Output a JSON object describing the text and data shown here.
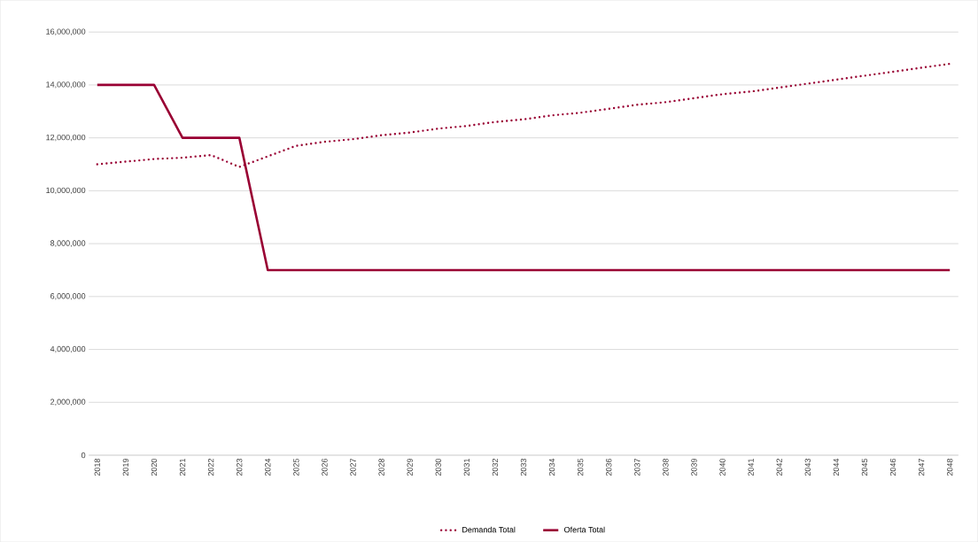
{
  "chart_data": {
    "type": "line",
    "categories": [
      "2018",
      "2019",
      "2020",
      "2021",
      "2022",
      "2023",
      "2024",
      "2025",
      "2026",
      "2027",
      "2028",
      "2029",
      "2030",
      "2031",
      "2032",
      "2033",
      "2034",
      "2035",
      "2036",
      "2037",
      "2038",
      "2039",
      "2040",
      "2041",
      "2042",
      "2043",
      "2044",
      "2045",
      "2046",
      "2047",
      "2048"
    ],
    "series": [
      {
        "name": "Demanda Total",
        "color": "#990033",
        "line_style": "dotted",
        "values": [
          11000000,
          11100000,
          11200000,
          11250000,
          11350000,
          10900000,
          11300000,
          11700000,
          11850000,
          11950000,
          12100000,
          12200000,
          12350000,
          12450000,
          12600000,
          12700000,
          12850000,
          12950000,
          13100000,
          13250000,
          13350000,
          13500000,
          13650000,
          13750000,
          13900000,
          14050000,
          14200000,
          14350000,
          14500000,
          14650000,
          14800000
        ]
      },
      {
        "name": "Oferta Total",
        "color": "#990033",
        "line_style": "solid",
        "values": [
          14000000,
          14000000,
          14000000,
          12000000,
          12000000,
          12000000,
          7000000,
          7000000,
          7000000,
          7000000,
          7000000,
          7000000,
          7000000,
          7000000,
          7000000,
          7000000,
          7000000,
          7000000,
          7000000,
          7000000,
          7000000,
          7000000,
          7000000,
          7000000,
          7000000,
          7000000,
          7000000,
          7000000,
          7000000,
          7000000,
          7000000
        ]
      }
    ],
    "ylim": [
      0,
      16000000
    ],
    "yticks": [
      {
        "value": 0,
        "label": "0"
      },
      {
        "value": 2000000,
        "label": "2,000,000"
      },
      {
        "value": 4000000,
        "label": "4,000,000"
      },
      {
        "value": 6000000,
        "label": "6,000,000"
      },
      {
        "value": 8000000,
        "label": "8,000,000"
      },
      {
        "value": 10000000,
        "label": "10,000,000"
      },
      {
        "value": 12000000,
        "label": "12,000,000"
      },
      {
        "value": 14000000,
        "label": "14,000,000"
      },
      {
        "value": 16000000,
        "label": "16,000,000"
      }
    ],
    "grid": "y",
    "legend": "bottom",
    "marker": "none"
  }
}
